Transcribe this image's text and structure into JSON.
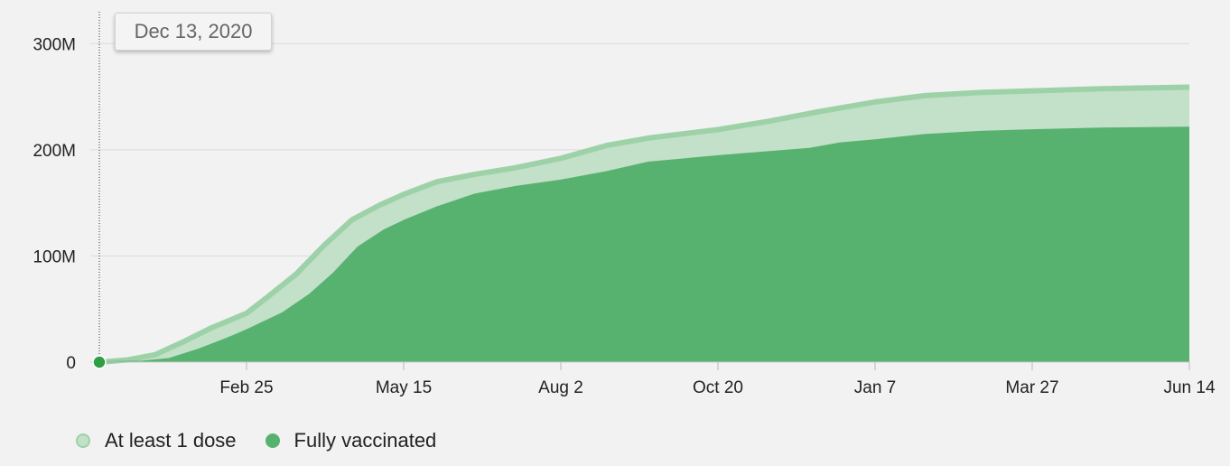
{
  "tooltip": {
    "date": "Dec 13, 2020"
  },
  "chart_data": {
    "type": "area",
    "title": "",
    "xlabel": "",
    "ylabel": "",
    "ylim": [
      0,
      330000000
    ],
    "y_ticks": [
      {
        "value": 0,
        "label": "0"
      },
      {
        "value": 100000000,
        "label": "100M"
      },
      {
        "value": 200000000,
        "label": "200M"
      },
      {
        "value": 300000000,
        "label": "300M"
      }
    ],
    "x_range": [
      "2020-12-13",
      "2022-06-14"
    ],
    "x_ticks": [
      {
        "date": "2021-02-25",
        "label": "Feb 25"
      },
      {
        "date": "2021-05-15",
        "label": "May 15"
      },
      {
        "date": "2021-08-02",
        "label": "Aug 2"
      },
      {
        "date": "2021-10-20",
        "label": "Oct 20"
      },
      {
        "date": "2022-01-07",
        "label": "Jan 7"
      },
      {
        "date": "2022-03-27",
        "label": "Mar 27"
      },
      {
        "date": "2022-06-14",
        "label": "Jun 14"
      }
    ],
    "grid": true,
    "legend_position": "bottom-left",
    "hover_date": "2020-12-13",
    "series": [
      {
        "name": "At least 1 dose",
        "color": "#c3e0c8",
        "line_color": "#9dd2a8",
        "points": [
          [
            "2020-12-13",
            0
          ],
          [
            "2020-12-27",
            2000000
          ],
          [
            "2021-01-10",
            7000000
          ],
          [
            "2021-01-24",
            19000000
          ],
          [
            "2021-02-07",
            32000000
          ],
          [
            "2021-02-25",
            46000000
          ],
          [
            "2021-03-08",
            62000000
          ],
          [
            "2021-03-22",
            83000000
          ],
          [
            "2021-04-05",
            110000000
          ],
          [
            "2021-04-19",
            134000000
          ],
          [
            "2021-05-03",
            148000000
          ],
          [
            "2021-05-15",
            158000000
          ],
          [
            "2021-06-01",
            170000000
          ],
          [
            "2021-06-20",
            177000000
          ],
          [
            "2021-07-10",
            183000000
          ],
          [
            "2021-08-02",
            192000000
          ],
          [
            "2021-08-25",
            204000000
          ],
          [
            "2021-09-15",
            211000000
          ],
          [
            "2021-10-20",
            219000000
          ],
          [
            "2021-11-15",
            227000000
          ],
          [
            "2021-12-10",
            236000000
          ],
          [
            "2022-01-07",
            245000000
          ],
          [
            "2022-02-01",
            251000000
          ],
          [
            "2022-03-01",
            254000000
          ],
          [
            "2022-03-27",
            255500000
          ],
          [
            "2022-05-01",
            257500000
          ],
          [
            "2022-06-14",
            259000000
          ]
        ]
      },
      {
        "name": "Fully vaccinated",
        "color": "#57b26f",
        "line_color": "#57b26f",
        "points": [
          [
            "2020-12-13",
            0
          ],
          [
            "2021-01-03",
            500000
          ],
          [
            "2021-01-17",
            3000000
          ],
          [
            "2021-02-01",
            12000000
          ],
          [
            "2021-02-15",
            22000000
          ],
          [
            "2021-02-25",
            30000000
          ],
          [
            "2021-03-15",
            46000000
          ],
          [
            "2021-03-29",
            64000000
          ],
          [
            "2021-04-10",
            84000000
          ],
          [
            "2021-04-22",
            108000000
          ],
          [
            "2021-05-05",
            124000000
          ],
          [
            "2021-05-15",
            133000000
          ],
          [
            "2021-06-01",
            146000000
          ],
          [
            "2021-06-20",
            158000000
          ],
          [
            "2021-07-10",
            165000000
          ],
          [
            "2021-08-02",
            171000000
          ],
          [
            "2021-08-25",
            179000000
          ],
          [
            "2021-09-15",
            188000000
          ],
          [
            "2021-10-20",
            194000000
          ],
          [
            "2021-11-15",
            198000000
          ],
          [
            "2021-12-05",
            201000000
          ],
          [
            "2021-12-20",
            206000000
          ],
          [
            "2022-01-07",
            209000000
          ],
          [
            "2022-02-01",
            214000000
          ],
          [
            "2022-03-01",
            217000000
          ],
          [
            "2022-03-27",
            218500000
          ],
          [
            "2022-05-01",
            220000000
          ],
          [
            "2022-06-14",
            221000000
          ]
        ]
      }
    ]
  },
  "legend": {
    "items": [
      {
        "label": "At least 1 dose",
        "fill": "#c3e0c8",
        "border": "#9dd2a8"
      },
      {
        "label": "Fully vaccinated",
        "fill": "#57b26f",
        "border": "#57b26f"
      }
    ]
  }
}
